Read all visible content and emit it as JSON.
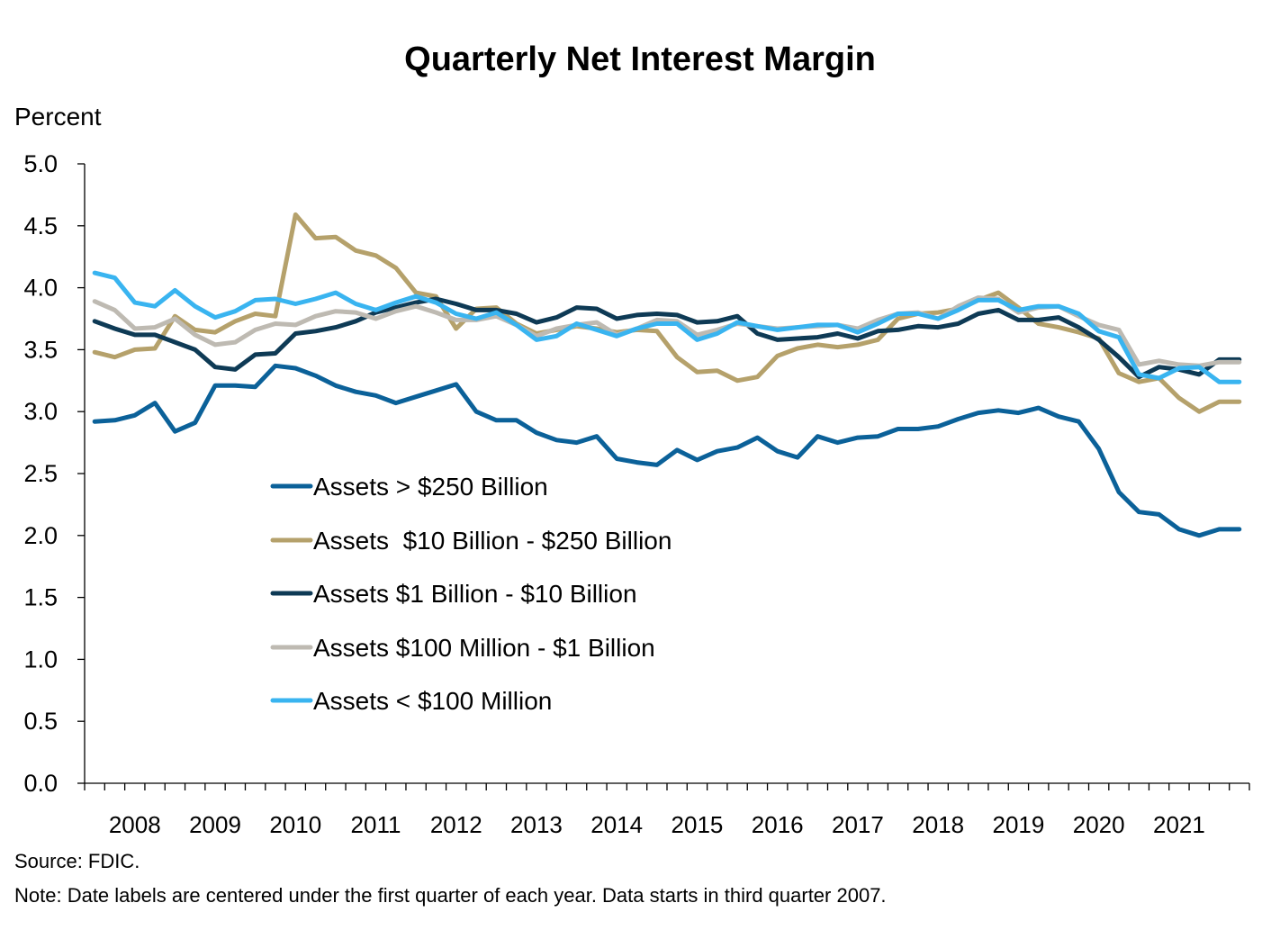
{
  "chart_data": {
    "type": "line",
    "title": "Quarterly Net Interest Margin",
    "ylabel": "Percent",
    "xlabel": "",
    "ylim": [
      0,
      5
    ],
    "yticks": [
      "0.0",
      "0.5",
      "1.0",
      "1.5",
      "2.0",
      "2.5",
      "3.0",
      "3.5",
      "4.0",
      "4.5",
      "5.0"
    ],
    "x_start": "2007 Q3",
    "x": [
      "2007Q3",
      "2007Q4",
      "2008Q1",
      "2008Q2",
      "2008Q3",
      "2008Q4",
      "2009Q1",
      "2009Q2",
      "2009Q3",
      "2009Q4",
      "2010Q1",
      "2010Q2",
      "2010Q3",
      "2010Q4",
      "2011Q1",
      "2011Q2",
      "2011Q3",
      "2011Q4",
      "2012Q1",
      "2012Q2",
      "2012Q3",
      "2012Q4",
      "2013Q1",
      "2013Q2",
      "2013Q3",
      "2013Q4",
      "2014Q1",
      "2014Q2",
      "2014Q3",
      "2014Q4",
      "2015Q1",
      "2015Q2",
      "2015Q3",
      "2015Q4",
      "2016Q1",
      "2016Q2",
      "2016Q3",
      "2016Q4",
      "2017Q1",
      "2017Q2",
      "2017Q3",
      "2017Q4",
      "2018Q1",
      "2018Q2",
      "2018Q3",
      "2018Q4",
      "2019Q1",
      "2019Q2",
      "2019Q3",
      "2019Q4",
      "2020Q1",
      "2020Q2",
      "2020Q3",
      "2020Q4",
      "2021Q1",
      "2021Q2",
      "2021Q3",
      "2021Q4"
    ],
    "year_labels": [
      "2008",
      "2009",
      "2010",
      "2011",
      "2012",
      "2013",
      "2014",
      "2015",
      "2016",
      "2017",
      "2018",
      "2019",
      "2020",
      "2021"
    ],
    "grid": false,
    "legend_position": "center-left",
    "series": [
      {
        "name": "Assets > $250 Billion",
        "color": "#0b6199",
        "values": [
          2.92,
          2.93,
          2.97,
          3.07,
          2.84,
          2.91,
          3.21,
          3.21,
          3.2,
          3.37,
          3.35,
          3.29,
          3.21,
          3.16,
          3.13,
          3.07,
          3.12,
          3.17,
          3.22,
          3.0,
          2.93,
          2.93,
          2.83,
          2.77,
          2.75,
          2.8,
          2.62,
          2.59,
          2.57,
          2.69,
          2.61,
          2.68,
          2.71,
          2.79,
          2.68,
          2.63,
          2.8,
          2.75,
          2.79,
          2.8,
          2.86,
          2.86,
          2.88,
          2.94,
          2.99,
          3.01,
          2.99,
          3.03,
          2.96,
          2.92,
          2.7,
          2.35,
          2.19,
          2.17,
          2.05,
          2.0,
          2.05,
          2.05
        ]
      },
      {
        "name": "Assets  $10 Billion - $250 Billion",
        "color": "#b5a16b",
        "values": [
          3.48,
          3.44,
          3.5,
          3.51,
          3.77,
          3.66,
          3.64,
          3.73,
          3.79,
          3.77,
          4.59,
          4.4,
          4.41,
          4.3,
          4.26,
          4.16,
          3.96,
          3.93,
          3.67,
          3.83,
          3.84,
          3.71,
          3.63,
          3.66,
          3.69,
          3.67,
          3.64,
          3.66,
          3.65,
          3.44,
          3.32,
          3.33,
          3.25,
          3.28,
          3.45,
          3.51,
          3.54,
          3.52,
          3.54,
          3.58,
          3.75,
          3.79,
          3.8,
          3.83,
          3.9,
          3.96,
          3.84,
          3.71,
          3.68,
          3.64,
          3.59,
          3.31,
          3.24,
          3.27,
          3.11,
          3.0,
          3.08,
          3.08
        ]
      },
      {
        "name": "Assets $1 Billion - $10 Billion",
        "color": "#0e3a55",
        "values": [
          3.73,
          3.67,
          3.62,
          3.62,
          3.56,
          3.5,
          3.36,
          3.34,
          3.46,
          3.47,
          3.63,
          3.65,
          3.68,
          3.73,
          3.8,
          3.84,
          3.88,
          3.91,
          3.87,
          3.82,
          3.82,
          3.79,
          3.72,
          3.76,
          3.84,
          3.83,
          3.75,
          3.78,
          3.79,
          3.78,
          3.72,
          3.73,
          3.77,
          3.63,
          3.58,
          3.59,
          3.6,
          3.63,
          3.59,
          3.65,
          3.66,
          3.69,
          3.68,
          3.71,
          3.79,
          3.82,
          3.74,
          3.74,
          3.76,
          3.68,
          3.58,
          3.44,
          3.28,
          3.36,
          3.34,
          3.3,
          3.42,
          3.42
        ]
      },
      {
        "name": "Assets $100 Million - $1 Billion",
        "color": "#bebab2",
        "values": [
          3.89,
          3.82,
          3.67,
          3.68,
          3.75,
          3.62,
          3.54,
          3.56,
          3.66,
          3.71,
          3.7,
          3.77,
          3.81,
          3.8,
          3.75,
          3.81,
          3.85,
          3.8,
          3.74,
          3.74,
          3.77,
          3.7,
          3.61,
          3.67,
          3.7,
          3.72,
          3.62,
          3.67,
          3.74,
          3.73,
          3.62,
          3.66,
          3.71,
          3.69,
          3.67,
          3.68,
          3.69,
          3.7,
          3.67,
          3.74,
          3.79,
          3.8,
          3.75,
          3.85,
          3.92,
          3.91,
          3.8,
          3.84,
          3.85,
          3.77,
          3.7,
          3.66,
          3.38,
          3.41,
          3.38,
          3.37,
          3.4,
          3.4
        ]
      },
      {
        "name": "Assets < $100 Million",
        "color": "#39b4f0",
        "values": [
          4.12,
          4.08,
          3.88,
          3.85,
          3.98,
          3.85,
          3.76,
          3.81,
          3.9,
          3.91,
          3.87,
          3.91,
          3.96,
          3.87,
          3.82,
          3.88,
          3.93,
          3.88,
          3.79,
          3.75,
          3.8,
          3.7,
          3.58,
          3.61,
          3.71,
          3.66,
          3.61,
          3.67,
          3.71,
          3.71,
          3.58,
          3.63,
          3.72,
          3.69,
          3.66,
          3.68,
          3.7,
          3.7,
          3.64,
          3.71,
          3.79,
          3.79,
          3.75,
          3.82,
          3.9,
          3.9,
          3.82,
          3.85,
          3.85,
          3.79,
          3.65,
          3.6,
          3.3,
          3.27,
          3.35,
          3.36,
          3.24,
          3.24
        ]
      }
    ]
  },
  "footer": {
    "source": "Source: FDIC.",
    "note": "Note: Date labels are centered under the first quarter of each year. Data starts in third quarter 2007."
  }
}
